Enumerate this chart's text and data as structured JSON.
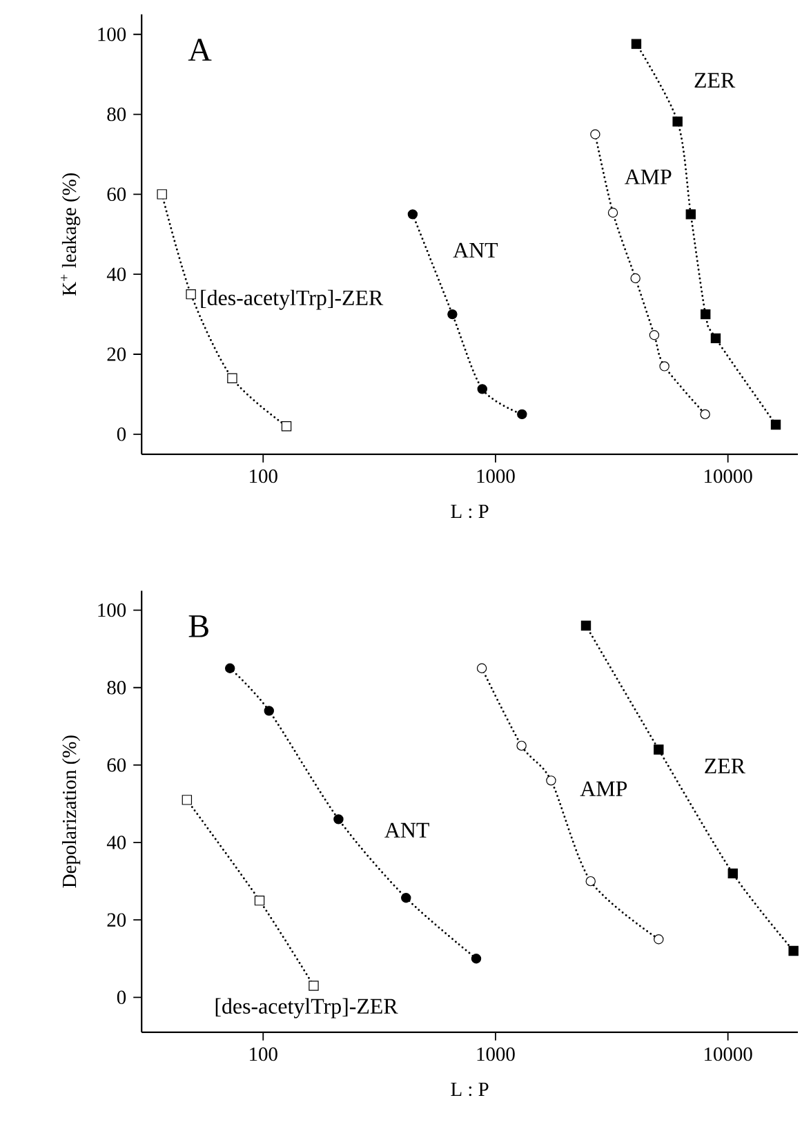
{
  "chart_data": [
    {
      "type": "line",
      "xlabel": "L : P",
      "ylabel": "K$^{+}$ leakage (%)",
      "log": "x",
      "xlim": [
        30,
        20000
      ],
      "ylim": [
        -5,
        105
      ],
      "xticks": [
        100,
        1000,
        10000
      ],
      "yticks": [
        0,
        20,
        40,
        60,
        80,
        100
      ],
      "line_style": "dotted",
      "series": [
        {
          "name": "[des-acetylTrp]-ZER",
          "x": [
            36.7,
            48.9,
            73.6,
            126
          ],
          "values": [
            60,
            35,
            14,
            2
          ],
          "color": "#000000",
          "marker": "square"
        },
        {
          "name": "ANT",
          "x": [
            440,
            652,
            877,
            1300
          ],
          "values": [
            55,
            30,
            11.3,
            5
          ],
          "color": "#000000",
          "marker": "circle"
        },
        {
          "name": "AMP",
          "x": [
            2685,
            3200,
            4000,
            4820,
            5330,
            7980
          ],
          "values": [
            75,
            55.4,
            39,
            24.8,
            17,
            5
          ],
          "color": "#000000",
          "marker": "circle"
        },
        {
          "name": "ZER",
          "x": [
            4035,
            6070,
            6920,
            8010,
            8860,
            16070
          ],
          "values": [
            97.6,
            78.2,
            55,
            30,
            24,
            2.4
          ],
          "color": "#000000",
          "marker": "square"
        }
      ],
      "annotations": [
        "A"
      ]
    },
    {
      "type": "line",
      "xlabel": "L : P",
      "ylabel": "Depolarization (%)",
      "log": "x",
      "xlim": [
        30,
        20000
      ],
      "ylim": [
        -9,
        105
      ],
      "xticks": [
        100,
        1000,
        10000
      ],
      "yticks": [
        0,
        20,
        40,
        60,
        80,
        100
      ],
      "line_style": "dotted",
      "series": [
        {
          "name": "[des-acetylTrp]-ZER",
          "x": [
            47,
            96.5,
            165
          ],
          "values": [
            51,
            25,
            3
          ],
          "color": "#000000",
          "marker": "square"
        },
        {
          "name": "ANT",
          "x": [
            72,
            106,
            211,
            412,
            826
          ],
          "values": [
            85,
            74,
            46,
            25.7,
            10
          ],
          "color": "#000000",
          "marker": "circle"
        },
        {
          "name": "AMP",
          "x": [
            873,
            1294,
            1734,
            2566,
            5035
          ],
          "values": [
            85,
            65,
            56,
            30,
            15
          ],
          "color": "#000000",
          "marker": "circle"
        },
        {
          "name": "ZER",
          "x": [
            2450,
            5035,
            10500,
            19150
          ],
          "values": [
            96,
            64,
            32,
            12
          ],
          "color": "#000000",
          "marker": "square"
        }
      ],
      "annotations": [
        "B"
      ]
    }
  ]
}
